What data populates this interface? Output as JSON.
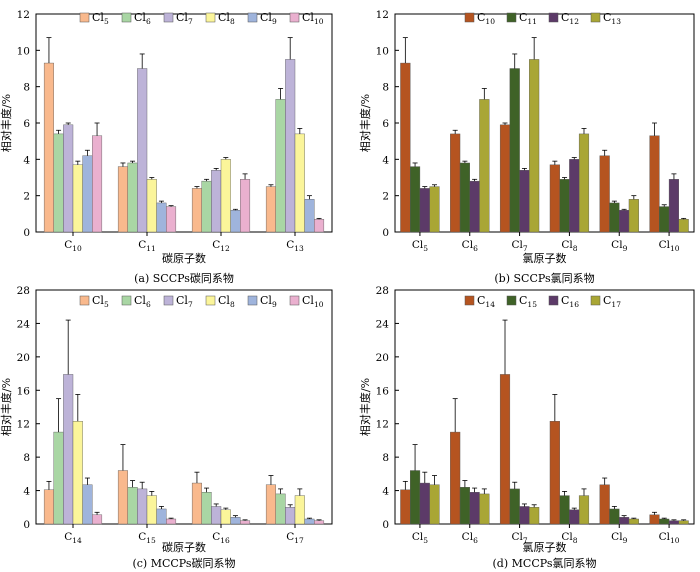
{
  "chart_data": [
    {
      "type": "bar",
      "caption": "(a)  SCCPs碳同系物",
      "xlabel": "碳原子数",
      "ylabel": "相对丰度/%",
      "ylim": [
        0,
        12
      ],
      "yticks": [
        0,
        2,
        4,
        6,
        8,
        10,
        12
      ],
      "legend_position": "top",
      "categories": [
        "C10",
        "C11",
        "C12",
        "C13"
      ],
      "series": [
        {
          "name": "Cl5",
          "color": "#f9b98d",
          "values": [
            9.3,
            3.6,
            2.4,
            2.5
          ],
          "errors": [
            1.4,
            0.2,
            0.1,
            0.1
          ]
        },
        {
          "name": "Cl6",
          "color": "#a9d6a4",
          "values": [
            5.4,
            3.8,
            2.8,
            7.3
          ],
          "errors": [
            0.2,
            0.1,
            0.1,
            0.6
          ]
        },
        {
          "name": "Cl7",
          "color": "#bdb3d8",
          "values": [
            5.9,
            9.0,
            3.4,
            9.5
          ],
          "errors": [
            0.1,
            0.8,
            0.1,
            1.2
          ]
        },
        {
          "name": "Cl8",
          "color": "#fbf59a",
          "values": [
            3.7,
            2.9,
            4.0,
            5.4
          ],
          "errors": [
            0.2,
            0.1,
            0.1,
            0.3
          ]
        },
        {
          "name": "Cl9",
          "color": "#9fb4dc",
          "values": [
            4.2,
            1.6,
            1.2,
            1.8
          ],
          "errors": [
            0.3,
            0.1,
            0.05,
            0.2
          ]
        },
        {
          "name": "Cl10",
          "color": "#eab0cf",
          "values": [
            5.3,
            1.4,
            2.9,
            0.7
          ],
          "errors": [
            0.7,
            0.05,
            0.3,
            0.05
          ]
        }
      ]
    },
    {
      "type": "bar",
      "caption": "(b)  SCCPs氯同系物",
      "xlabel": "氯原子数",
      "ylabel": "相对丰度/%",
      "ylim": [
        0,
        12
      ],
      "yticks": [
        0,
        2,
        4,
        6,
        8,
        10,
        12
      ],
      "legend_position": "top",
      "categories": [
        "Cl5",
        "Cl6",
        "Cl7",
        "Cl8",
        "Cl9",
        "Cl10"
      ],
      "series": [
        {
          "name": "C10",
          "color": "#b55420",
          "values": [
            9.3,
            5.4,
            5.9,
            3.7,
            4.2,
            5.3
          ],
          "errors": [
            1.4,
            0.2,
            0.1,
            0.2,
            0.3,
            0.7
          ]
        },
        {
          "name": "C11",
          "color": "#3f6227",
          "values": [
            3.6,
            3.8,
            9.0,
            2.9,
            1.6,
            1.4
          ],
          "errors": [
            0.2,
            0.1,
            0.8,
            0.1,
            0.1,
            0.1
          ]
        },
        {
          "name": "C12",
          "color": "#5c3a68",
          "values": [
            2.4,
            2.8,
            3.4,
            4.0,
            1.2,
            2.9
          ],
          "errors": [
            0.1,
            0.1,
            0.1,
            0.1,
            0.05,
            0.3
          ]
        },
        {
          "name": "C13",
          "color": "#a9a635",
          "values": [
            2.5,
            7.3,
            9.5,
            5.4,
            1.8,
            0.7
          ],
          "errors": [
            0.1,
            0.6,
            1.2,
            0.3,
            0.2,
            0.05
          ]
        }
      ]
    },
    {
      "type": "bar",
      "caption": "(c)  MCCPs碳同系物",
      "xlabel": "碳原子数",
      "ylabel": "相对丰度/%",
      "ylim": [
        0,
        28
      ],
      "yticks": [
        0,
        4,
        8,
        12,
        16,
        20,
        24,
        28
      ],
      "legend_position": "top",
      "categories": [
        "C14",
        "C15",
        "C16",
        "C17"
      ],
      "series": [
        {
          "name": "Cl5",
          "color": "#f9b98d",
          "values": [
            4.1,
            6.4,
            4.9,
            4.7
          ],
          "errors": [
            1.0,
            3.1,
            1.3,
            1.1
          ]
        },
        {
          "name": "Cl6",
          "color": "#a9d6a4",
          "values": [
            11.0,
            4.4,
            3.8,
            3.6
          ],
          "errors": [
            4.0,
            0.8,
            0.5,
            0.6
          ]
        },
        {
          "name": "Cl7",
          "color": "#bdb3d8",
          "values": [
            17.9,
            4.2,
            2.1,
            2.0
          ],
          "errors": [
            6.5,
            0.8,
            0.3,
            0.3
          ]
        },
        {
          "name": "Cl8",
          "color": "#fbf59a",
          "values": [
            12.3,
            3.4,
            1.7,
            3.4
          ],
          "errors": [
            3.2,
            0.5,
            0.2,
            0.8
          ]
        },
        {
          "name": "Cl9",
          "color": "#9fb4dc",
          "values": [
            4.7,
            1.8,
            0.8,
            0.6
          ],
          "errors": [
            0.8,
            0.3,
            0.2,
            0.1
          ]
        },
        {
          "name": "Cl10",
          "color": "#eab0cf",
          "values": [
            1.1,
            0.6,
            0.4,
            0.4
          ],
          "errors": [
            0.3,
            0.1,
            0.1,
            0.1
          ]
        }
      ]
    },
    {
      "type": "bar",
      "caption": "(d)  MCCPs氯同系物",
      "xlabel": "氯原子数",
      "ylabel": "相对丰度/%",
      "ylim": [
        0,
        28
      ],
      "yticks": [
        0,
        4,
        8,
        12,
        16,
        20,
        24,
        28
      ],
      "legend_position": "top",
      "categories": [
        "Cl5",
        "Cl6",
        "Cl7",
        "Cl8",
        "Cl9",
        "Cl10"
      ],
      "series": [
        {
          "name": "C14",
          "color": "#b55420",
          "values": [
            4.1,
            11.0,
            17.9,
            12.3,
            4.7,
            1.1
          ],
          "errors": [
            1.0,
            4.0,
            6.5,
            3.2,
            0.8,
            0.3
          ]
        },
        {
          "name": "C15",
          "color": "#3f6227",
          "values": [
            6.4,
            4.4,
            4.2,
            3.4,
            1.8,
            0.6
          ],
          "errors": [
            3.1,
            0.8,
            0.8,
            0.5,
            0.3,
            0.1
          ]
        },
        {
          "name": "C16",
          "color": "#5c3a68",
          "values": [
            4.9,
            3.8,
            2.1,
            1.7,
            0.8,
            0.4
          ],
          "errors": [
            1.3,
            0.5,
            0.3,
            0.2,
            0.2,
            0.1
          ]
        },
        {
          "name": "C17",
          "color": "#a9a635",
          "values": [
            4.7,
            3.6,
            2.0,
            3.4,
            0.6,
            0.4
          ],
          "errors": [
            1.1,
            0.6,
            0.3,
            0.8,
            0.1,
            0.1
          ]
        }
      ]
    }
  ]
}
